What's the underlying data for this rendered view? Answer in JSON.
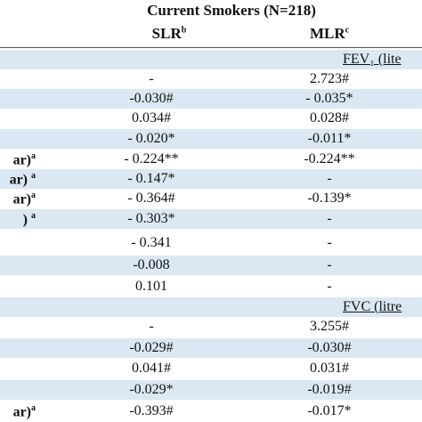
{
  "header": {
    "title": "Current Smokers (N=218)",
    "col1": "SLR",
    "col1_sup": "b",
    "col2": "MLR",
    "col2_sup": "c"
  },
  "rows": [
    {
      "section": "FEV₁ (lite"
    },
    {
      "slr": "-",
      "mlr": "2.723#"
    },
    {
      "slr": "-0.030#",
      "mlr": "- 0.035*"
    },
    {
      "slr": "0.034#",
      "mlr": "0.028#"
    },
    {
      "slr": "- 0.020*",
      "mlr": "-0.011*"
    },
    {
      "label": "ar)",
      "label_sup": "a",
      "slr": "- 0.224**",
      "mlr": "-0.224**"
    },
    {
      "label": "ar) ",
      "label_sup": "a",
      "slr": "- 0.147*",
      "mlr": "-"
    },
    {
      "label": "ar)",
      "label_sup": "a",
      "slr": "- 0.364#",
      "mlr": "-0.139*"
    },
    {
      "label": ") ",
      "label_sup": "a",
      "slr": "- 0.303*",
      "mlr": "-"
    },
    {
      "slr": "- 0.341",
      "mlr": "-"
    },
    {
      "slr": "-0.008",
      "mlr": "-"
    },
    {
      "slr": "0.101",
      "mlr": "-"
    },
    {
      "section": "FVC (litre"
    },
    {
      "slr": "-",
      "mlr": "3.255#"
    },
    {
      "slr": "-0.029#",
      "mlr": "-0.030#"
    },
    {
      "slr": "0.041#",
      "mlr": "0.031#"
    },
    {
      "slr": "-0.029*",
      "mlr": "-0.019#"
    },
    {
      "label": "ar)",
      "label_sup": "a",
      "slr": "-0.393#",
      "mlr": "-0.017*"
    }
  ]
}
